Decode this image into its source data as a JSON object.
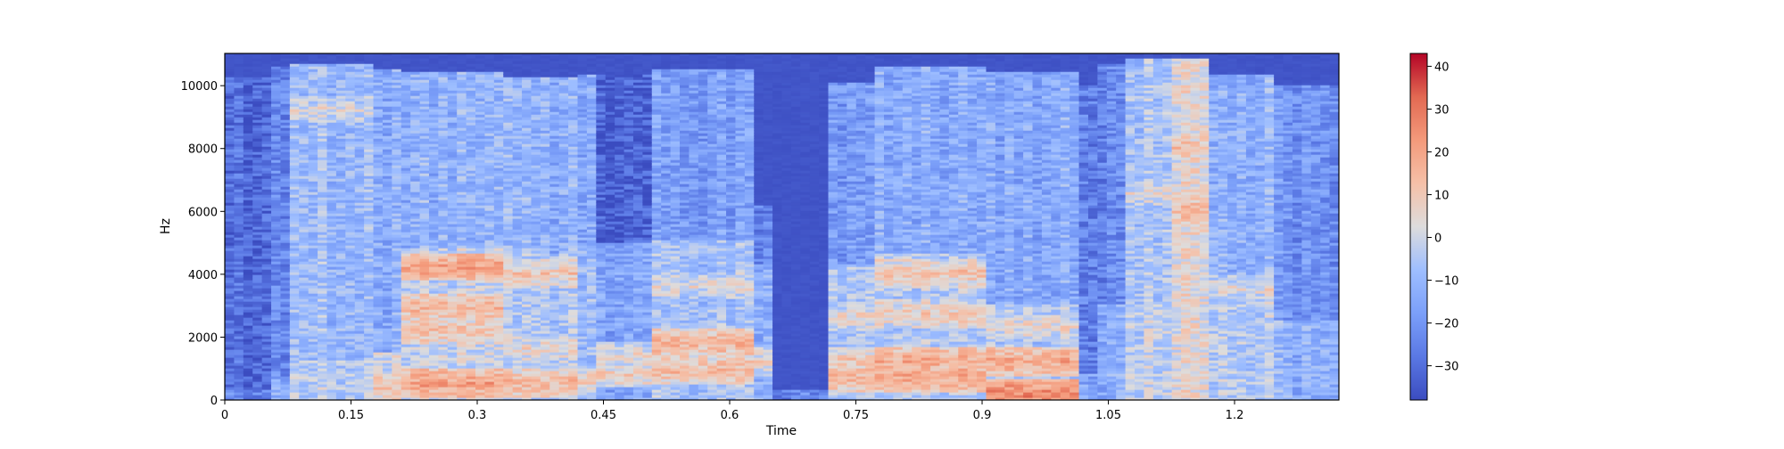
{
  "chart_data": {
    "type": "heatmap",
    "title": "",
    "xlabel": "Time",
    "ylabel": "Hz",
    "xlim": [
      0,
      1.324
    ],
    "ylim": [
      0,
      11025
    ],
    "xticks": [
      0,
      0.15,
      0.3,
      0.45,
      0.6,
      0.75,
      0.9,
      1.05,
      1.2
    ],
    "xtick_labels": [
      "0",
      "0.15",
      "0.3",
      "0.45",
      "0.6",
      "0.75",
      "0.9",
      "1.05",
      "1.2"
    ],
    "yticks": [
      0,
      2000,
      4000,
      6000,
      8000,
      10000
    ],
    "ytick_labels": [
      "0",
      "2000",
      "4000",
      "6000",
      "8000",
      "10000"
    ],
    "colormap": "coolwarm",
    "colors": [
      "#3b4cc0",
      "#dddcdc",
      "#b40426"
    ],
    "grid": false,
    "colorbar": {
      "vmin": -38,
      "vmax": 43,
      "ticks": [
        -30,
        -20,
        -10,
        0,
        10,
        20,
        30,
        40
      ],
      "tick_labels": [
        "−30",
        "−20",
        "−10",
        "0",
        "10",
        "20",
        "30",
        "40"
      ]
    },
    "segments": [
      {
        "t0": 0.0,
        "t1": 0.05,
        "base_db": -31,
        "fmax": 10200,
        "low_db": -24,
        "low_fmax": 300,
        "formants": []
      },
      {
        "t0": 0.05,
        "t1": 0.08,
        "base_db": -22,
        "fmax": 10600,
        "low_db": -12,
        "low_fmax": 600,
        "formants": []
      },
      {
        "t0": 0.08,
        "t1": 0.18,
        "base_db": -9,
        "fmax": 10700,
        "low_db": -4,
        "low_fmax": 1200,
        "formants": [
          {
            "f": 9200,
            "db": 3
          }
        ]
      },
      {
        "t0": 0.18,
        "t1": 0.21,
        "base_db": -14,
        "fmax": 10500,
        "low_db": 0,
        "low_fmax": 1500,
        "formants": [
          {
            "f": 400,
            "db": 12
          }
        ]
      },
      {
        "t0": 0.21,
        "t1": 0.33,
        "base_db": -12,
        "fmax": 10400,
        "low_db": -2,
        "low_fmax": 4800,
        "formants": [
          {
            "f": 500,
            "db": 20
          },
          {
            "f": 2200,
            "db": 12
          },
          {
            "f": 2900,
            "db": 15
          },
          {
            "f": 4200,
            "db": 20
          }
        ]
      },
      {
        "t0": 0.33,
        "t1": 0.42,
        "base_db": -12,
        "fmax": 10200,
        "low_db": -6,
        "low_fmax": 4600,
        "formants": [
          {
            "f": 500,
            "db": 14
          },
          {
            "f": 1600,
            "db": 6
          },
          {
            "f": 4000,
            "db": 10
          }
        ]
      },
      {
        "t0": 0.42,
        "t1": 0.445,
        "base_db": -15,
        "fmax": 10300,
        "low_db": -10,
        "low_fmax": 4800,
        "formants": [
          {
            "f": 600,
            "db": 8
          }
        ]
      },
      {
        "t0": 0.445,
        "t1": 0.51,
        "base_db": -34,
        "fmax": 10300,
        "low_db": -16,
        "low_fmax": 5000,
        "formants": [
          {
            "f": 800,
            "db": 8
          },
          {
            "f": 1400,
            "db": 4
          }
        ]
      },
      {
        "t0": 0.51,
        "t1": 0.63,
        "base_db": -18,
        "fmax": 10500,
        "low_db": -8,
        "low_fmax": 5100,
        "formants": [
          {
            "f": 900,
            "db": 14
          },
          {
            "f": 1800,
            "db": 16
          },
          {
            "f": 3600,
            "db": 4
          }
        ]
      },
      {
        "t0": 0.63,
        "t1": 0.65,
        "base_db": -26,
        "fmax": 6200,
        "low_db": -14,
        "low_fmax": 4300,
        "formants": [
          {
            "f": 1200,
            "db": 6
          }
        ]
      },
      {
        "t0": 0.65,
        "t1": 0.72,
        "base_db": -36,
        "fmax": 300,
        "low_db": -24,
        "low_fmax": 300,
        "formants": []
      },
      {
        "t0": 0.72,
        "t1": 0.77,
        "base_db": -20,
        "fmax": 10100,
        "low_db": -8,
        "low_fmax": 4300,
        "formants": [
          {
            "f": 700,
            "db": 14
          },
          {
            "f": 1200,
            "db": 10
          },
          {
            "f": 2600,
            "db": 6
          }
        ]
      },
      {
        "t0": 0.77,
        "t1": 0.91,
        "base_db": -13,
        "fmax": 10600,
        "low_db": -4,
        "low_fmax": 4600,
        "formants": [
          {
            "f": 700,
            "db": 20
          },
          {
            "f": 1200,
            "db": 18
          },
          {
            "f": 2700,
            "db": 10
          },
          {
            "f": 4000,
            "db": 12
          }
        ]
      },
      {
        "t0": 0.91,
        "t1": 1.02,
        "base_db": -14,
        "fmax": 10400,
        "low_db": -6,
        "low_fmax": 3000,
        "formants": [
          {
            "f": 150,
            "db": 26
          },
          {
            "f": 1200,
            "db": 18
          },
          {
            "f": 2300,
            "db": 6
          }
        ]
      },
      {
        "t0": 1.02,
        "t1": 1.04,
        "base_db": -26,
        "fmax": 10000,
        "low_db": -16,
        "low_fmax": 800,
        "formants": []
      },
      {
        "t0": 1.04,
        "t1": 1.07,
        "base_db": -24,
        "fmax": 10700,
        "low_db": -14,
        "low_fmax": 3000,
        "formants": []
      },
      {
        "t0": 1.07,
        "t1": 1.12,
        "base_db": -6,
        "fmax": 10800,
        "low_db": -2,
        "low_fmax": 3000,
        "formants": [
          {
            "f": 6500,
            "db": 4
          }
        ]
      },
      {
        "t0": 1.12,
        "t1": 1.17,
        "base_db": 3,
        "fmax": 10800,
        "low_db": 0,
        "low_fmax": 3000,
        "formants": [
          {
            "f": 6000,
            "db": 14
          },
          {
            "f": 8000,
            "db": 12
          }
        ]
      },
      {
        "t0": 1.17,
        "t1": 1.25,
        "base_db": -12,
        "fmax": 10300,
        "low_db": -4,
        "low_fmax": 3500,
        "formants": [
          {
            "f": 3500,
            "db": 4
          }
        ]
      },
      {
        "t0": 1.25,
        "t1": 1.324,
        "base_db": -20,
        "fmax": 10000,
        "low_db": -12,
        "low_fmax": 2500,
        "formants": []
      }
    ]
  }
}
